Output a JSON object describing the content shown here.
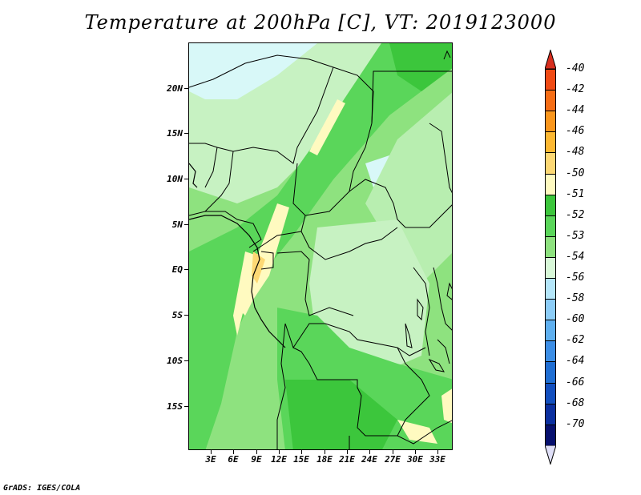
{
  "title": "Temperature at 200hPa [C], VT: 2019123000",
  "credit": "GrADS: IGES/COLA",
  "map": {
    "lat_labels": [
      "20N",
      "15N",
      "10N",
      "5N",
      "EQ",
      "5S",
      "10S",
      "15S"
    ],
    "lon_labels": [
      "3E",
      "6E",
      "9E",
      "12E",
      "15E",
      "18E",
      "21E",
      "24E",
      "27E",
      "30E",
      "33E"
    ]
  },
  "colorbar": {
    "labels": [
      "-40",
      "-42",
      "-44",
      "-46",
      "-48",
      "-50",
      "-51",
      "-52",
      "-53",
      "-54",
      "-56",
      "-58",
      "-60",
      "-62",
      "-64",
      "-66",
      "-68",
      "-70"
    ],
    "colors": {
      "top_arrow": "#d72e1e",
      "bins": [
        "#f04a14",
        "#f66d15",
        "#fa961c",
        "#fdb832",
        "#fdd874",
        "#fffac0",
        "#3cc63c",
        "#5ad65a",
        "#8ee27f",
        "#d8f8d8",
        "#b4e6fa",
        "#8ccdf8",
        "#5fb0f0",
        "#3c8ee6",
        "#1f6ed3",
        "#124fbf",
        "#0b2f9f",
        "#07106e"
      ],
      "bottom_arrow": "#e0e0f8"
    }
  }
}
